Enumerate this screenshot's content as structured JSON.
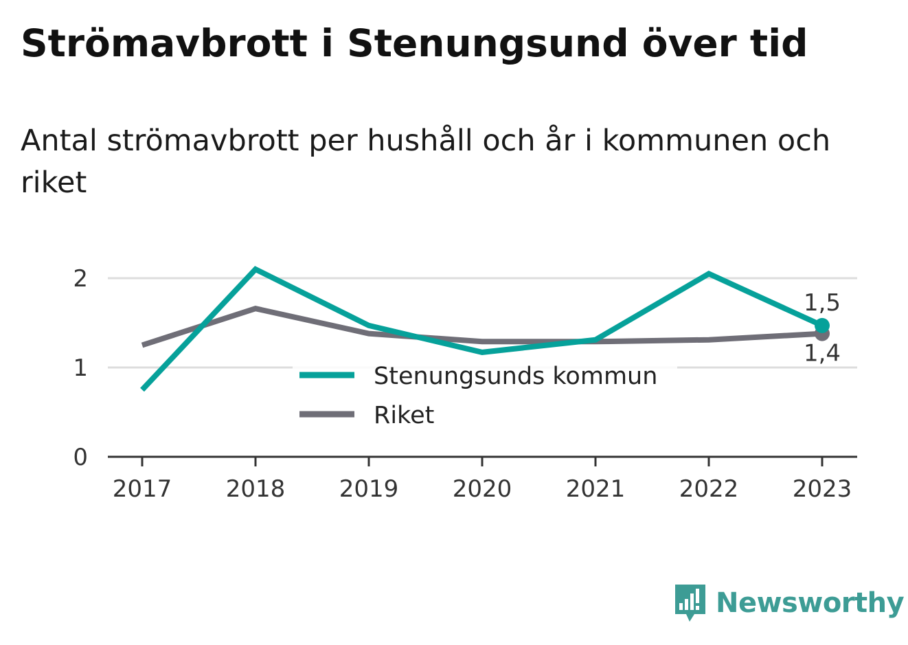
{
  "title": "Strömavbrott i Stenungsund över tid",
  "subtitle": "Antal strömavbrott per hushåll och år i kommunen och riket",
  "brand": {
    "name": "Newsworthy",
    "icon": "bar-chart-speech-bubble-icon",
    "color": "#3d9c95"
  },
  "chart_data": {
    "type": "line",
    "title": "Strömavbrott i Stenungsund över tid",
    "subtitle": "Antal strömavbrott per hushåll och år i kommunen och riket",
    "x": [
      "2017",
      "2018",
      "2019",
      "2020",
      "2021",
      "2022",
      "2023"
    ],
    "y_ticks": [
      "0",
      "1",
      "2"
    ],
    "ylim": [
      0,
      2.1
    ],
    "grid": true,
    "legend_position": "center",
    "series": [
      {
        "name": "Stenungsunds kommun",
        "color": "#06a19a",
        "values": [
          0.75,
          2.1,
          1.47,
          1.17,
          1.31,
          2.05,
          1.47
        ],
        "end_label": "1,5"
      },
      {
        "name": "Riket",
        "color": "#6f6e77",
        "values": [
          1.25,
          1.66,
          1.38,
          1.29,
          1.29,
          1.31,
          1.38
        ],
        "end_label": "1,4"
      }
    ]
  }
}
